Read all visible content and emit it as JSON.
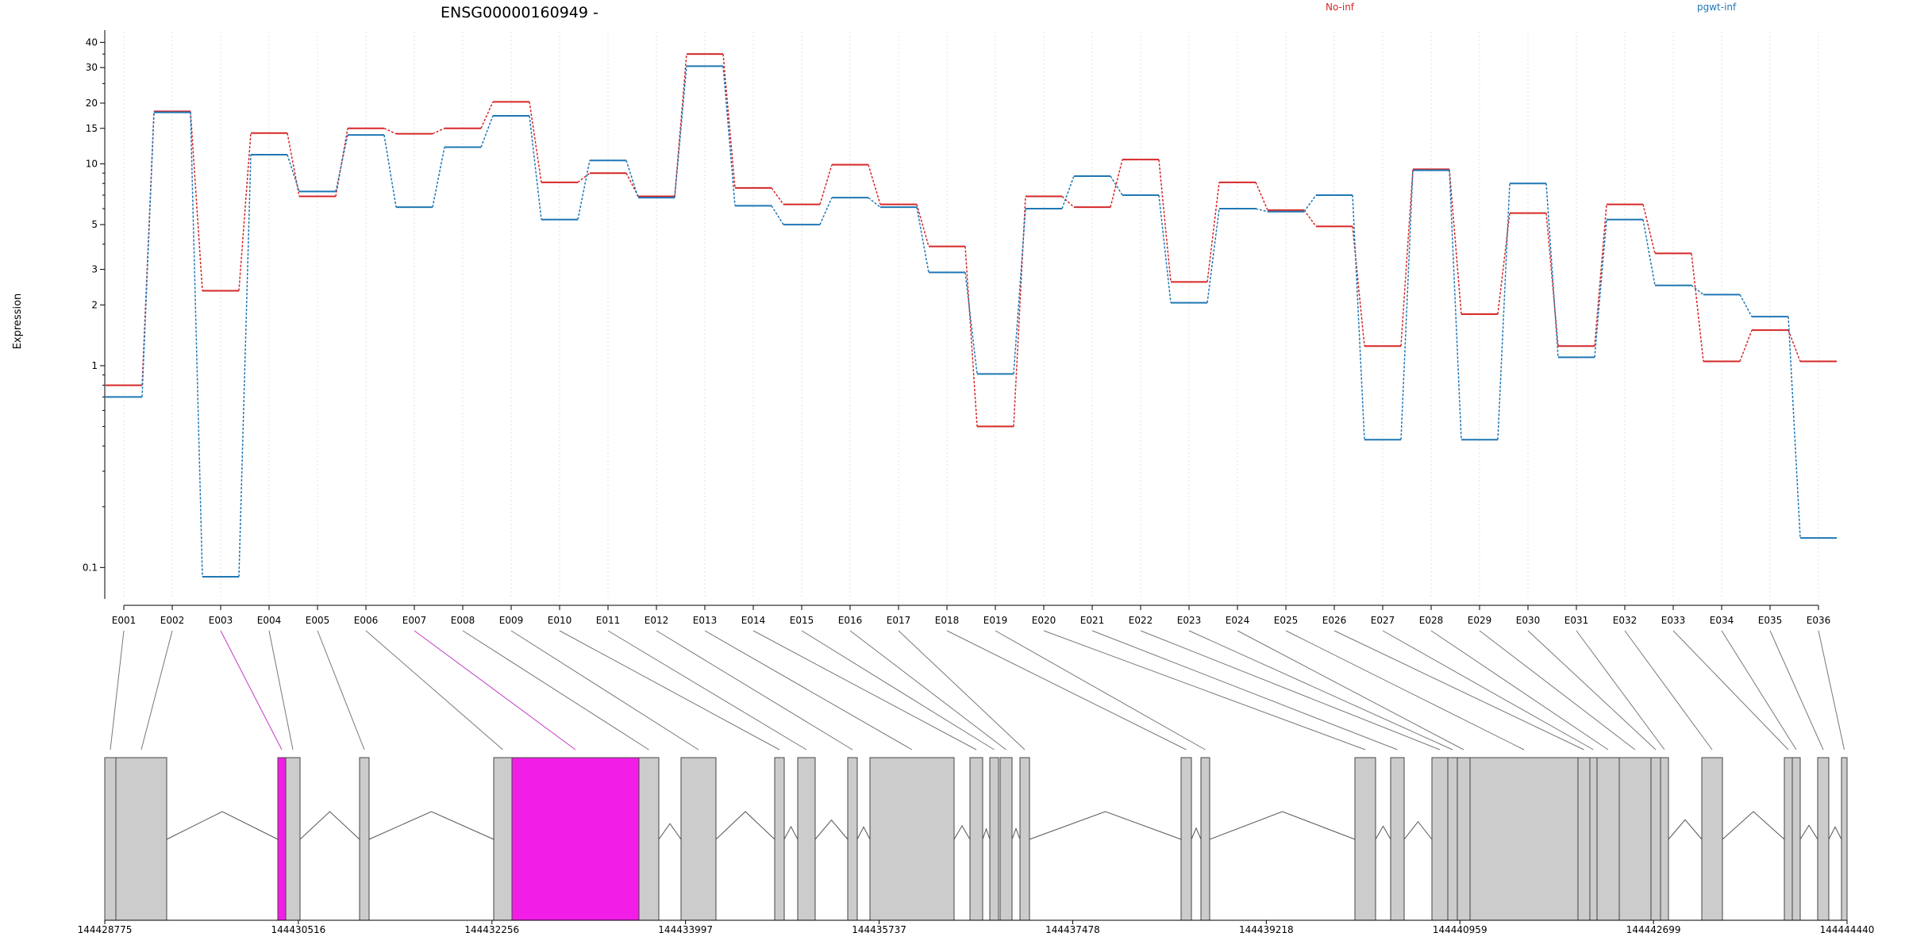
{
  "title": "ENSG00000160949 -",
  "colors": {
    "no_inf": "#d62728",
    "pgwt_inf": "#1f77b4",
    "exon_fill": "#cccccc",
    "exon_highlight": "#f21de6",
    "connector": "#777777",
    "connector_highlight": "#c03bc8",
    "grid": "#e0e0e0"
  },
  "chart_data": {
    "type": "line",
    "ylabel": "Expression",
    "yscale": "log",
    "ylim": [
      0.08,
      42
    ],
    "yticks": [
      0.1,
      1,
      2,
      3,
      5,
      10,
      15,
      20,
      30,
      40
    ],
    "categories": [
      "E001",
      "E002",
      "E003",
      "E004",
      "E005",
      "E006",
      "E007",
      "E008",
      "E009",
      "E010",
      "E011",
      "E012",
      "E013",
      "E014",
      "E015",
      "E016",
      "E017",
      "E018",
      "E019",
      "E020",
      "E021",
      "E022",
      "E023",
      "E024",
      "E025",
      "E026",
      "E027",
      "E028",
      "E029",
      "E030",
      "E031",
      "E032",
      "E033",
      "E034",
      "E035",
      "E036"
    ],
    "series": [
      {
        "name": "No-inf",
        "color": "#d62728",
        "values": [
          0.8,
          18.2,
          2.35,
          14.2,
          6.9,
          15.0,
          14.1,
          15.0,
          20.3,
          8.1,
          9.0,
          6.9,
          35.0,
          7.6,
          6.3,
          9.9,
          6.3,
          3.9,
          0.5,
          6.9,
          6.1,
          10.5,
          2.6,
          8.1,
          5.9,
          4.9,
          1.25,
          9.4,
          1.8,
          5.7,
          1.25,
          6.3,
          3.6,
          1.05,
          1.5,
          1.05
        ]
      },
      {
        "name": "pgwt-inf",
        "color": "#1f77b4",
        "values": [
          0.7,
          18.0,
          0.09,
          11.1,
          7.3,
          13.9,
          6.1,
          12.1,
          17.3,
          5.3,
          10.4,
          6.8,
          30.5,
          6.2,
          5.0,
          6.8,
          6.1,
          2.9,
          0.91,
          6.0,
          8.7,
          7.0,
          2.05,
          6.0,
          5.8,
          7.0,
          0.43,
          9.3,
          0.43,
          8.0,
          1.1,
          5.3,
          2.5,
          2.25,
          1.75,
          0.14
        ]
      }
    ]
  },
  "legend": [
    "No-inf",
    "pgwt-inf"
  ],
  "genome_ticks": [
    "144428775",
    "144430516",
    "144432256",
    "144433997",
    "144435737",
    "144437478",
    "144439218",
    "144440959",
    "144442699",
    "144444440"
  ],
  "gene_model": {
    "highlighted_exons": [
      "E003",
      "E007"
    ]
  }
}
